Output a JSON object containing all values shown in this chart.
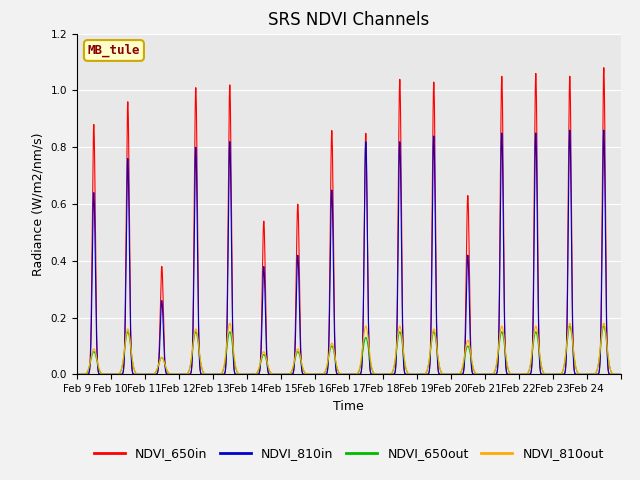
{
  "title": "SRS NDVI Channels",
  "ylabel": "Radiance (W/m2/nm/s)",
  "xlabel": "Time",
  "site_label": "MB_tule",
  "bg_color": "#e8e8e8",
  "fig_bg_color": "#f2f2f2",
  "line_colors": {
    "NDVI_650in": "#ff0000",
    "NDVI_810in": "#0000cc",
    "NDVI_650out": "#00bb00",
    "NDVI_810out": "#ffaa00"
  },
  "ylim": [
    0.0,
    1.2
  ],
  "days": [
    "Feb 9",
    "Feb 10",
    "Feb 11",
    "Feb 12",
    "Feb 13",
    "Feb 14",
    "Feb 15",
    "Feb 16",
    "Feb 17",
    "Feb 18",
    "Feb 19",
    "Feb 20",
    "Feb 21",
    "Feb 22",
    "Feb 23",
    "Feb 24"
  ],
  "day_peaks_650in": [
    0.88,
    0.96,
    0.38,
    1.01,
    1.02,
    0.54,
    0.6,
    0.86,
    0.85,
    1.04,
    1.03,
    0.63,
    1.05,
    1.06,
    1.05,
    1.08
  ],
  "day_peaks_810in": [
    0.64,
    0.76,
    0.26,
    0.8,
    0.82,
    0.38,
    0.42,
    0.65,
    0.82,
    0.82,
    0.84,
    0.42,
    0.85,
    0.85,
    0.86,
    0.86
  ],
  "day_peaks_650out": [
    0.08,
    0.15,
    0.06,
    0.15,
    0.15,
    0.07,
    0.08,
    0.1,
    0.13,
    0.15,
    0.15,
    0.1,
    0.15,
    0.15,
    0.17,
    0.17
  ],
  "day_peaks_810out": [
    0.09,
    0.16,
    0.06,
    0.16,
    0.18,
    0.08,
    0.09,
    0.11,
    0.17,
    0.17,
    0.16,
    0.12,
    0.17,
    0.17,
    0.18,
    0.18
  ],
  "title_fontsize": 12,
  "label_fontsize": 9,
  "tick_fontsize": 7.5,
  "legend_fontsize": 9
}
